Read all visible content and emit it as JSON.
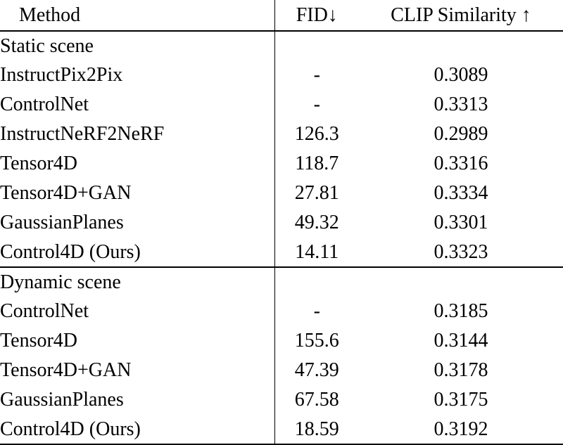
{
  "table": {
    "columns": [
      {
        "label": "Method"
      },
      {
        "label": "FID↓"
      },
      {
        "label": "CLIP Similarity ↑"
      }
    ],
    "sections": [
      {
        "title": "Static scene",
        "rows": [
          {
            "method": "InstructPix2Pix",
            "fid": "-",
            "clip": "0.3089",
            "fid_bold": false,
            "clip_bold": false
          },
          {
            "method": "ControlNet",
            "fid": "-",
            "clip": "0.3313",
            "fid_bold": false,
            "clip_bold": false
          },
          {
            "method": "InstructNeRF2NeRF",
            "fid": "126.3",
            "clip": "0.2989",
            "fid_bold": false,
            "clip_bold": false
          },
          {
            "method": "Tensor4D",
            "fid": "118.7",
            "clip": "0.3316",
            "fid_bold": false,
            "clip_bold": false
          },
          {
            "method": "Tensor4D+GAN",
            "fid": "27.81",
            "clip": "0.3334",
            "fid_bold": false,
            "clip_bold": true
          },
          {
            "method": "GaussianPlanes",
            "fid": "49.32",
            "clip": "0.3301",
            "fid_bold": false,
            "clip_bold": false
          },
          {
            "method": "Control4D (Ours)",
            "fid": "14.11",
            "clip": "0.3323",
            "fid_bold": true,
            "clip_bold": false
          }
        ]
      },
      {
        "title": "Dynamic scene",
        "rows": [
          {
            "method": "ControlNet",
            "fid": "-",
            "clip": "0.3185",
            "fid_bold": false,
            "clip_bold": false
          },
          {
            "method": "Tensor4D",
            "fid": "155.6",
            "clip": "0.3144",
            "fid_bold": false,
            "clip_bold": false
          },
          {
            "method": "Tensor4D+GAN",
            "fid": "47.39",
            "clip": "0.3178",
            "fid_bold": false,
            "clip_bold": false
          },
          {
            "method": "GaussianPlanes",
            "fid": "67.58",
            "clip": "0.3175",
            "fid_bold": false,
            "clip_bold": false
          },
          {
            "method": "Control4D (Ours)",
            "fid": "18.59",
            "clip": "0.3192",
            "fid_bold": true,
            "clip_bold": true
          }
        ]
      }
    ]
  }
}
